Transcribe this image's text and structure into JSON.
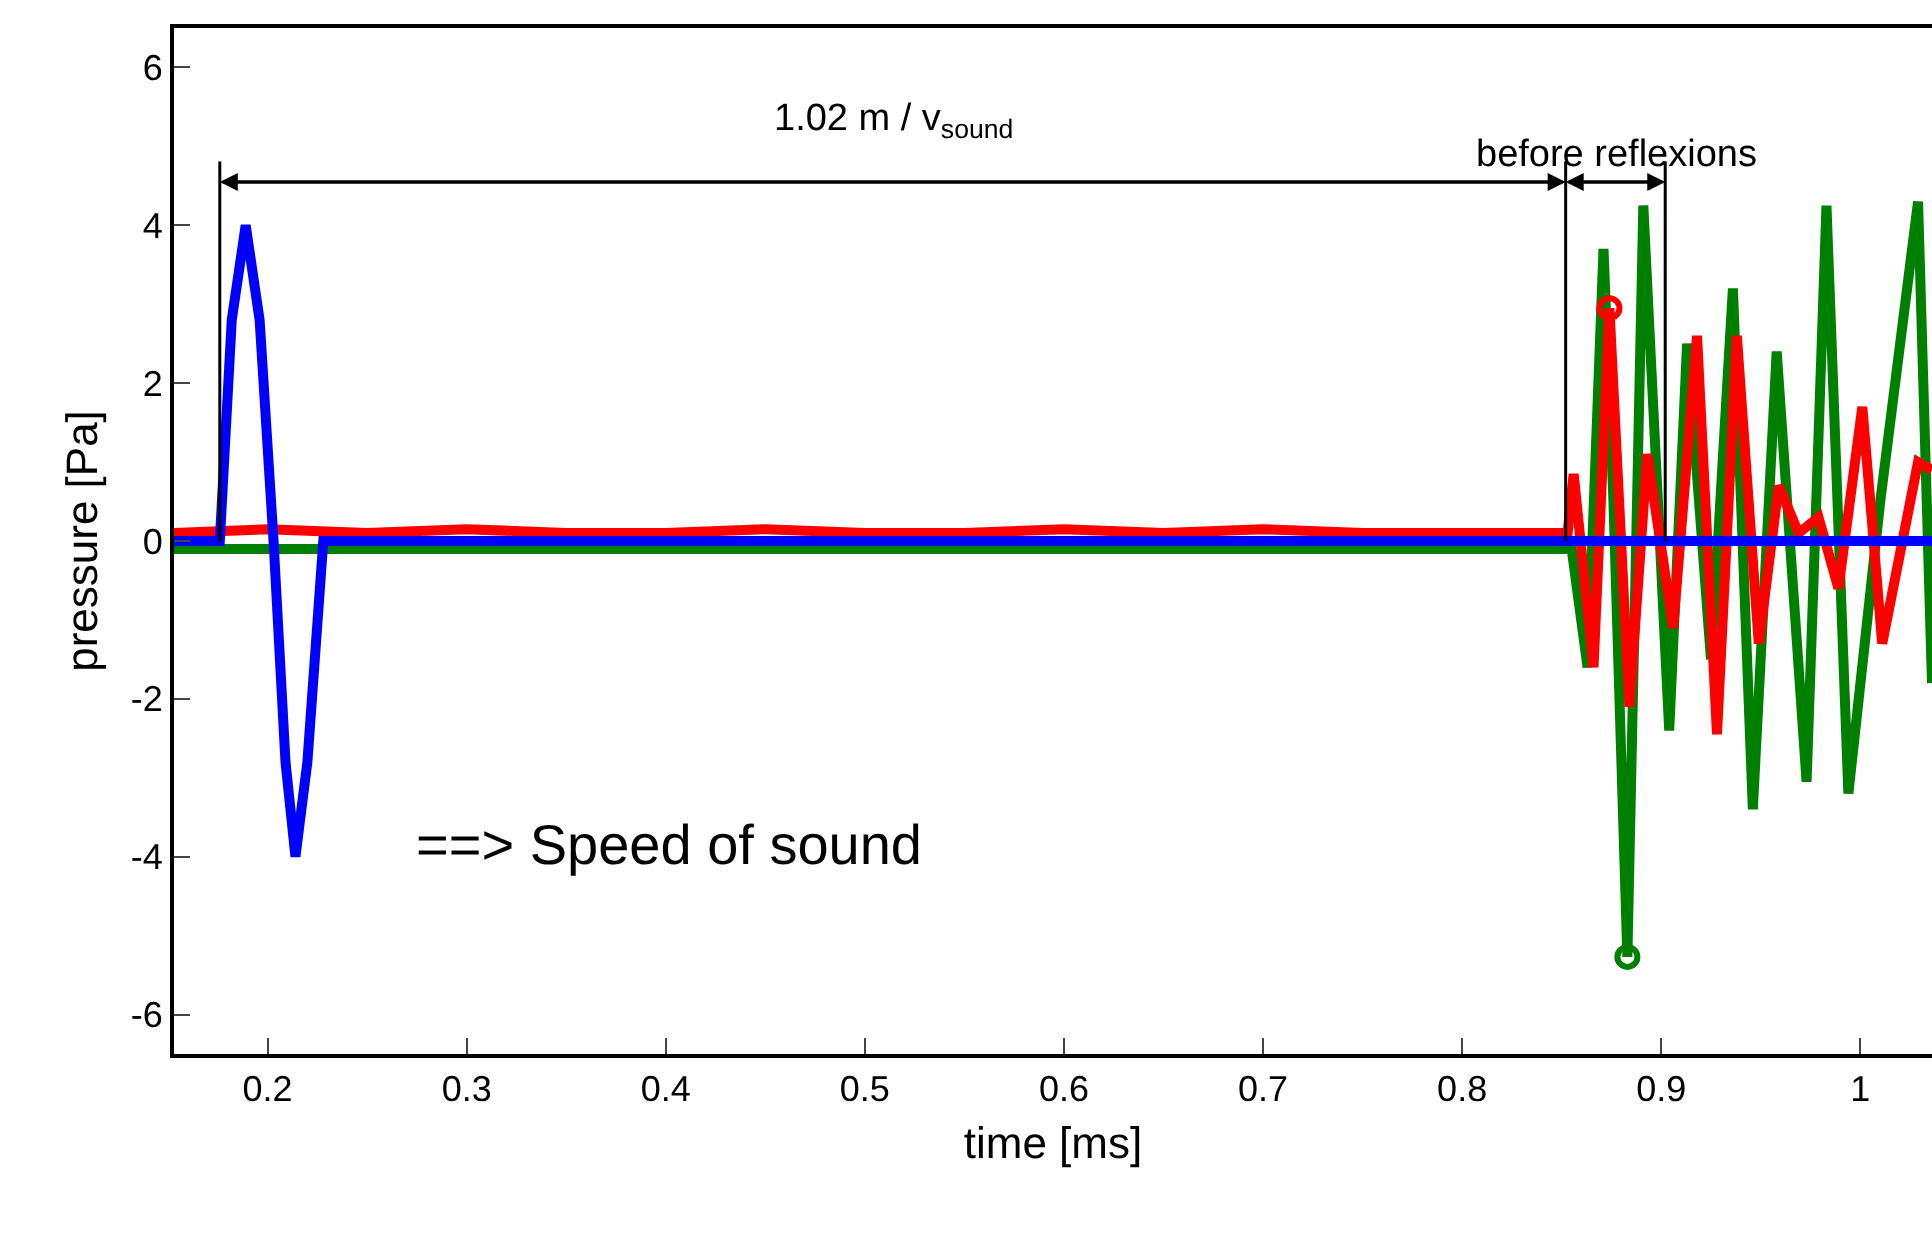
{
  "chart_data": {
    "type": "line",
    "xlabel": "time [ms]",
    "ylabel": "pressure [Pa]",
    "xlim": [
      0.153,
      1.036
    ],
    "ylim": [
      -6.5,
      6.5
    ],
    "xticks": [
      0.2,
      0.3,
      0.4,
      0.5,
      0.6,
      0.7,
      0.8,
      0.9,
      1
    ],
    "yticks": [
      -6,
      -4,
      -2,
      0,
      2,
      4,
      6
    ],
    "marker": "none",
    "line_style": "solid",
    "series": [
      {
        "color": "#008000",
        "x": [
          0.153,
          0.25,
          0.35,
          0.45,
          0.55,
          0.65,
          0.75,
          0.855,
          0.863,
          0.871,
          0.876,
          0.883,
          0.891,
          0.904,
          0.913,
          0.925,
          0.936,
          0.946,
          0.958,
          0.973,
          0.983,
          0.994,
          1.01,
          1.029,
          1.036
        ],
        "values": [
          -0.1,
          -0.1,
          -0.1,
          -0.1,
          -0.1,
          -0.1,
          -0.1,
          -0.1,
          -1.6,
          3.7,
          0.5,
          -5.27,
          4.25,
          -2.4,
          2.5,
          -1.5,
          3.2,
          -3.4,
          2.4,
          -3.05,
          4.25,
          -3.2,
          0.5,
          4.3,
          -1.8
        ]
      },
      {
        "color": "#ff0000",
        "x": [
          0.153,
          0.2,
          0.25,
          0.3,
          0.35,
          0.4,
          0.45,
          0.5,
          0.55,
          0.6,
          0.65,
          0.7,
          0.75,
          0.8,
          0.853,
          0.856,
          0.866,
          0.874,
          0.884,
          0.893,
          0.906,
          0.918,
          0.928,
          0.938,
          0.949,
          0.959,
          0.969,
          0.979,
          0.989,
          1.001,
          1.011,
          1.029,
          1.036
        ],
        "values": [
          0.1,
          0.15,
          0.1,
          0.15,
          0.1,
          0.1,
          0.15,
          0.1,
          0.1,
          0.15,
          0.1,
          0.15,
          0.1,
          0.1,
          0.1,
          0.85,
          -1.6,
          2.95,
          -2.1,
          1.1,
          -1.1,
          2.6,
          -2.45,
          2.6,
          -1.3,
          0.7,
          0.1,
          0.3,
          -0.6,
          1.7,
          -1.3,
          1.0,
          0.9
        ]
      },
      {
        "color": "#0000ff",
        "x": [
          0.153,
          0.176,
          0.182,
          0.189,
          0.196,
          0.203,
          0.209,
          0.214,
          0.22,
          0.228,
          0.3,
          0.5,
          0.7,
          0.9,
          1.036
        ],
        "values": [
          0,
          0,
          2.8,
          4,
          2.8,
          0,
          -2.8,
          -4,
          -2.8,
          0,
          0,
          0,
          0,
          0,
          0
        ]
      },
      {
        "type": "scatter",
        "marker": "circle",
        "color": "#ff0000",
        "x": [
          0.874
        ],
        "values": [
          2.95
        ]
      },
      {
        "type": "scatter",
        "marker": "circle",
        "color": "#008000",
        "x": [
          0.883
        ],
        "values": [
          -5.27
        ]
      }
    ],
    "ref_lines": [
      {
        "axis": "x",
        "value": 0.176,
        "color": "#000000"
      },
      {
        "axis": "x",
        "value": 0.852,
        "color": "#000000"
      },
      {
        "axis": "x",
        "value": 0.902,
        "color": "#000000"
      }
    ],
    "annotations": [
      "1.02 m / v$_{sound}$",
      "before reflexions",
      "==> Speed of sound"
    ]
  }
}
